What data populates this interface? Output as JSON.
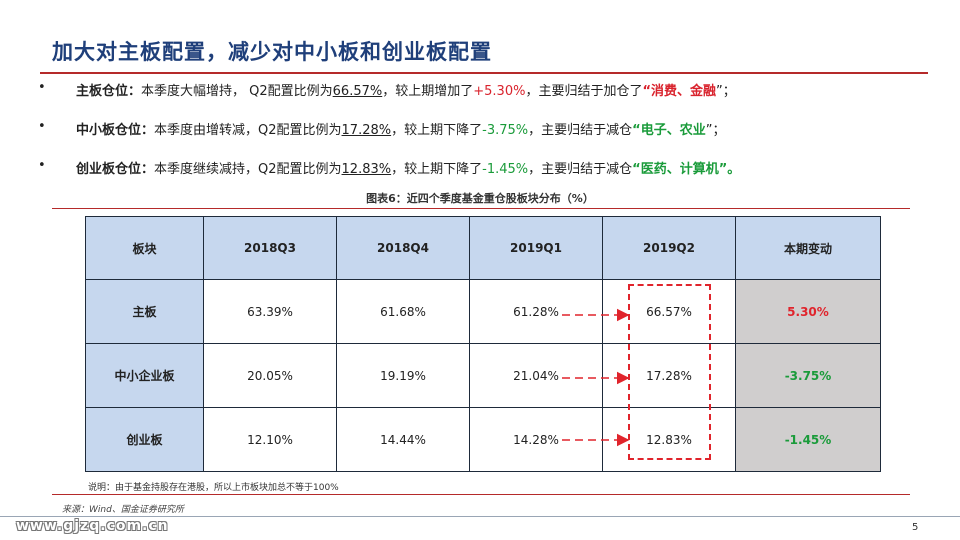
{
  "title": "加大对主板配置，减少对中小板和创业板配置",
  "bullets": [
    {
      "dot": "•",
      "head": "主板仓位：",
      "t1": "本季度大幅增持，  Q2配置比例为",
      "ratio": "66.57%",
      "t2": "，较上期增加了",
      "change": "+5.30%",
      "t3": "，主要归结于加仓了",
      "q_open": "“",
      "sectors": "消费、金融",
      "q_close": "”；"
    },
    {
      "dot": "•",
      "head": "中小板仓位：",
      "t1": "本季度由增转减，Q2配置比例为",
      "ratio": "17.28%",
      "t2": "，较上期下降了",
      "change": "-3.75%",
      "t3": "，主要归结于减仓",
      "q_open": "“",
      "sectors": "电子、农业",
      "q_close": "”；"
    },
    {
      "dot": "•",
      "head": "创业板仓位：",
      "t1": "本季度继续减持，Q2配置比例为",
      "ratio": "12.83%",
      "t2": "，较上期下降了",
      "change": "-1.45%",
      "t3": "，主要归结于减仓",
      "q_open": "“",
      "sectors": "医药、计算机",
      "q_close": "”。"
    }
  ],
  "caption": "图表6：近四个季度基金重仓股板块分布（%）",
  "table": {
    "headers": [
      "板块",
      "2018Q3",
      "2018Q4",
      "2019Q1",
      "2019Q2",
      "本期变动"
    ],
    "rows": [
      {
        "label": "主板",
        "v1": "63.39%",
        "v2": "61.68%",
        "v3": "61.28%",
        "v4": "66.57%",
        "chg": "5.30%"
      },
      {
        "label": "中小企业板",
        "v1": "20.05%",
        "v2": "19.19%",
        "v3": "21.04%",
        "v4": "17.28%",
        "chg": "-3.75%"
      },
      {
        "label": "创业板",
        "v1": "12.10%",
        "v2": "14.44%",
        "v3": "14.28%",
        "v4": "12.83%",
        "chg": "-1.45%"
      }
    ]
  },
  "note": "说明：由于基金持股存在港股，所以上市板块加总不等于100%",
  "source": "来源：Wind、国金证券研究所",
  "footer": {
    "site": "www.gjzq.com.cn",
    "page": "5"
  },
  "colors": {
    "title": "#1f3f7a",
    "rule": "#b52a2a",
    "header_bg": "#c6d7ee",
    "change_bg": "#d0cece",
    "up": "#e0242c",
    "down": "#1a9b3a",
    "arrow": "#e0242c"
  }
}
